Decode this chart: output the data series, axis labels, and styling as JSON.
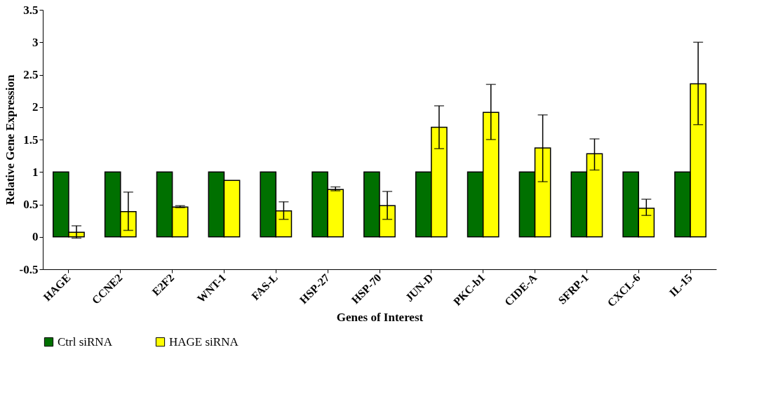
{
  "chart_data": {
    "type": "bar",
    "xlabel": "Genes of Interest",
    "ylabel": "Relative Gene Expression",
    "categories": [
      "HAGE",
      "CCNE2",
      "E2F2",
      "WNT-1",
      "FAS-L",
      "HSP-27",
      "HSP-70",
      "JUN-D",
      "PKC-b1",
      "CIDE-A",
      "SFRP-1",
      "CXCL-6",
      "IL-15"
    ],
    "series": [
      {
        "name": "Ctrl siRNA",
        "color": "#007000",
        "values": [
          1,
          1,
          1,
          1,
          1,
          1,
          1,
          1,
          1,
          1,
          1,
          1,
          1
        ]
      },
      {
        "name": "HAGE siRNA",
        "color": "#ffff00",
        "values": [
          0.07,
          0.39,
          0.46,
          0.87,
          0.4,
          0.73,
          0.48,
          1.69,
          1.92,
          1.37,
          1.28,
          0.44,
          2.36
        ],
        "errors": [
          [
            -0.02,
            0.17
          ],
          [
            0.1,
            0.69
          ],
          [
            0.45,
            0.48
          ],
          null,
          [
            0.27,
            0.54
          ],
          [
            0.71,
            0.77
          ],
          [
            0.27,
            0.7
          ],
          [
            1.36,
            2.02
          ],
          [
            1.5,
            2.35
          ],
          [
            0.85,
            1.88
          ],
          [
            1.03,
            1.51
          ],
          [
            0.33,
            0.58
          ],
          [
            1.73,
            3.0
          ]
        ]
      }
    ],
    "ylim": [
      -0.5,
      3.5
    ],
    "yticks": [
      -0.5,
      0,
      0.5,
      1,
      1.5,
      2,
      2.5,
      3,
      3.5
    ],
    "grid": false,
    "legend": "bottom"
  }
}
